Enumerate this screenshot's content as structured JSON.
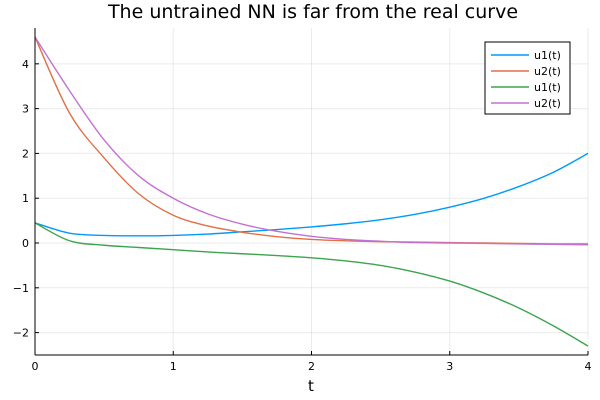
{
  "chart_data": {
    "type": "line",
    "title": "The untrained NN is far from the real curve",
    "xlabel": "t",
    "ylabel": "",
    "xlim": [
      0,
      4
    ],
    "ylim": [
      -2.5,
      4.8
    ],
    "xticks": [
      "0",
      "1",
      "2",
      "3",
      "4"
    ],
    "yticks": [
      "−2",
      "−1",
      "0",
      "1",
      "2",
      "3",
      "4"
    ],
    "grid": true,
    "legend_position": "top-right",
    "x": [
      0,
      0.25,
      0.5,
      0.75,
      1,
      1.25,
      1.5,
      1.75,
      2,
      2.25,
      2.5,
      2.75,
      3,
      3.25,
      3.5,
      3.75,
      4
    ],
    "series": [
      {
        "name": "u1(t)",
        "color": "#009af9",
        "values": [
          0.45,
          0.22,
          0.17,
          0.16,
          0.17,
          0.2,
          0.25,
          0.3,
          0.36,
          0.43,
          0.52,
          0.64,
          0.8,
          1.0,
          1.26,
          1.58,
          2.0
        ]
      },
      {
        "name": "u2(t)",
        "color": "#e26f46",
        "values": [
          4.6,
          2.9,
          1.9,
          1.1,
          0.62,
          0.38,
          0.24,
          0.14,
          0.08,
          0.05,
          0.03,
          0.02,
          0.01,
          0.0,
          -0.01,
          -0.02,
          -0.02
        ]
      },
      {
        "name": "u1(t)",
        "color": "#3da44d",
        "values": [
          0.45,
          0.05,
          -0.05,
          -0.1,
          -0.15,
          -0.2,
          -0.24,
          -0.28,
          -0.33,
          -0.4,
          -0.5,
          -0.65,
          -0.85,
          -1.12,
          -1.45,
          -1.85,
          -2.3
        ]
      },
      {
        "name": "u2(t)",
        "color": "#c271d2",
        "values": [
          4.6,
          3.4,
          2.3,
          1.5,
          1.0,
          0.65,
          0.42,
          0.26,
          0.15,
          0.08,
          0.04,
          0.01,
          0.0,
          -0.01,
          -0.02,
          -0.03,
          -0.04
        ]
      }
    ]
  }
}
